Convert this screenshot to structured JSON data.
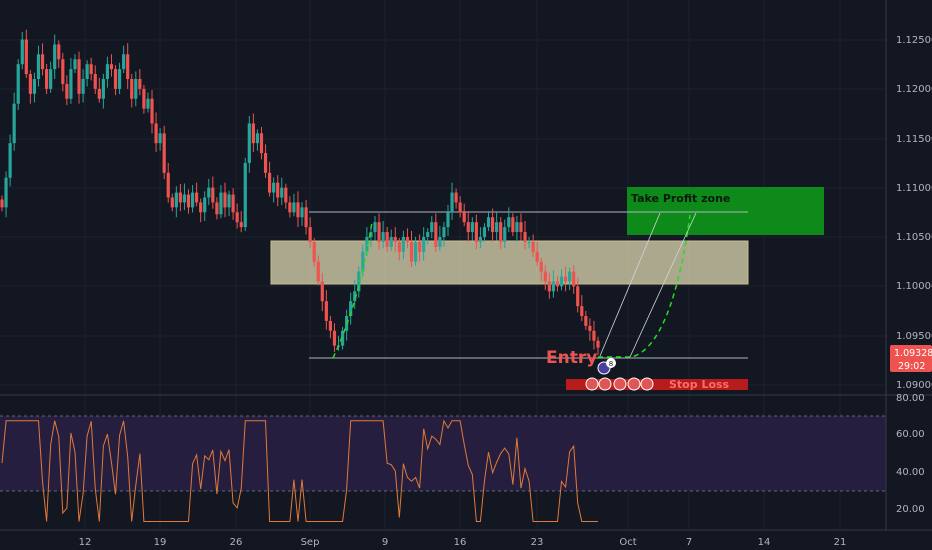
{
  "colors": {
    "background": "#131722",
    "grid": "#1e222d",
    "candle_up": "#26a69a",
    "candle_down": "#ef5350",
    "axis_text": "#b2b5be",
    "price_badge": "#ef5350",
    "take_profit": "#0d8a1a",
    "supply_zone": "#e8e0b8",
    "stop_loss": "#b71c1c",
    "rsi_band": "#2a2044",
    "rsi_line": "#e07a3a"
  },
  "price_axis": {
    "ticks": [
      "1.12500",
      "1.12000",
      "1.11500",
      "1.11000",
      "1.10500",
      "1.10000",
      "1.09500",
      "1.09000"
    ]
  },
  "price_badge": {
    "price": "1.09328",
    "timer": "29:02"
  },
  "rsi_axis": {
    "ticks": [
      "80.00",
      "60.00",
      "40.00",
      "20.00"
    ]
  },
  "time_axis": {
    "ticks": [
      "12",
      "19",
      "26",
      "Sep",
      "9",
      "16",
      "23",
      "Oct",
      "7",
      "14",
      "21"
    ]
  },
  "annotations": {
    "take_profit": "Take Profit zone",
    "entry": "Entry",
    "stop_loss": "Stop Loss",
    "badge_count": "8"
  },
  "chart_data": {
    "type": "candlestick",
    "ylim": [
      1.0885,
      1.1285
    ],
    "last_price": 1.09328,
    "closes": [
      1.1075,
      1.1105,
      1.114,
      1.118,
      1.122,
      1.1245,
      1.121,
      1.119,
      1.1205,
      1.123,
      1.1215,
      1.1195,
      1.1215,
      1.124,
      1.1225,
      1.12,
      1.1185,
      1.1215,
      1.1225,
      1.119,
      1.1205,
      1.122,
      1.121,
      1.1195,
      1.1185,
      1.1205,
      1.122,
      1.1215,
      1.1195,
      1.1215,
      1.123,
      1.1205,
      1.1185,
      1.1205,
      1.1195,
      1.1175,
      1.1185,
      1.116,
      1.114,
      1.115,
      1.111,
      1.1085,
      1.1075,
      1.109,
      1.108,
      1.1088,
      1.1075,
      1.109,
      1.108,
      1.107,
      1.1085,
      1.1095,
      1.108,
      1.1068,
      1.109,
      1.1075,
      1.1088,
      1.107,
      1.106,
      1.1055,
      1.112,
      1.116,
      1.114,
      1.115,
      1.113,
      1.111,
      1.109,
      1.11,
      1.1085,
      1.1095,
      1.108,
      1.107,
      1.108,
      1.1065,
      1.1075,
      1.1055,
      1.104,
      1.102,
      1.1,
      1.098,
      1.096,
      1.095,
      1.0935,
      1.0935,
      1.095,
      1.0965,
      1.098,
      1.099,
      1.101,
      1.103,
      1.1045,
      1.105,
      1.106,
      1.104,
      1.105,
      1.1035,
      1.1045,
      1.104,
      1.103,
      1.1045,
      1.104,
      1.102,
      1.104,
      1.103,
      1.1045,
      1.105,
      1.106,
      1.1035,
      1.1045,
      1.1055,
      1.107,
      1.109,
      1.108,
      1.107,
      1.106,
      1.105,
      1.106,
      1.104,
      1.1045,
      1.1055,
      1.1065,
      1.105,
      1.106,
      1.104,
      1.1055,
      1.1065,
      1.105,
      1.106,
      1.105,
      1.104,
      1.104,
      1.103,
      1.102,
      1.101,
      1.1,
      1.099,
      1.1,
      1.0995,
      1.1005,
      1.1,
      1.101,
      1.0995,
      1.0975,
      1.0965,
      1.0955,
      1.095,
      1.094,
      1.0933
    ]
  }
}
